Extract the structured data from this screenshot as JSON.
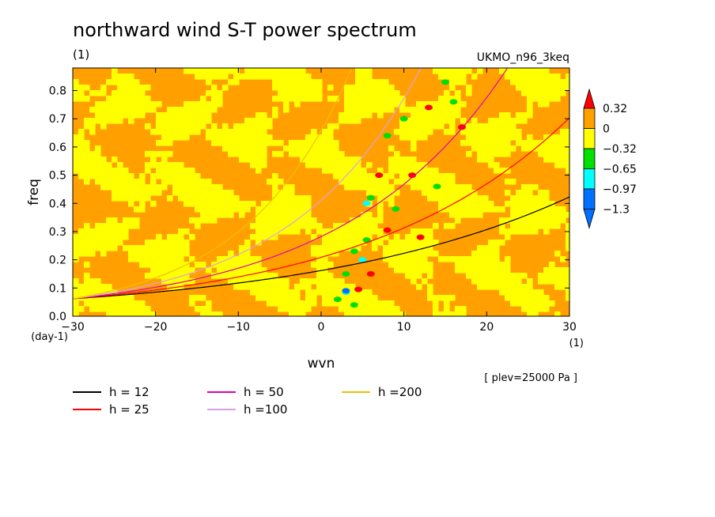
{
  "header": {
    "title": "northward wind S-T power spectrum",
    "unit": "(1)",
    "model": "UKMO_n96_3keq"
  },
  "chart_data": {
    "type": "heatmap",
    "title": "northward wind S-T power spectrum",
    "xlabel": "wvn",
    "ylabel": "freq",
    "x_unit": "(1)",
    "y_unit": "(day-1)",
    "xlim": [
      -30,
      30
    ],
    "ylim": [
      0,
      0.88
    ],
    "x_ticks": [
      "-30",
      "-20",
      "-10",
      "0",
      "10",
      "20",
      "30"
    ],
    "y_ticks": [
      "0.0",
      "0.1",
      "0.2",
      "0.3",
      "0.4",
      "0.5",
      "0.6",
      "0.7",
      "0.8"
    ],
    "annotation": "[ plev=25000 Pa ]",
    "colorbar": {
      "labels": [
        "0.32",
        "0",
        "-0.32",
        "-0.65",
        "-0.97",
        "-1.3"
      ],
      "colors": [
        "#0070ff",
        "#00ffff",
        "#00e000",
        "#ffff00",
        "#ffa000",
        "#ff0000"
      ],
      "thresholds": [
        -1.3,
        -0.97,
        -0.65,
        -0.32,
        0,
        0.32
      ],
      "extend": "both"
    },
    "dispersion_curves": [
      {
        "name": "h = 12",
        "h": 12,
        "color": "#000000"
      },
      {
        "name": "h = 25",
        "h": 25,
        "color": "#ff0000"
      },
      {
        "name": "h = 50",
        "h": 50,
        "color": "#e000b0"
      },
      {
        "name": "h =100",
        "h": 100,
        "color": "#d8a0e8"
      },
      {
        "name": "h =200",
        "h": 200,
        "color": "#f0c000"
      }
    ],
    "legend_position": "bottom-left",
    "grid": false
  }
}
